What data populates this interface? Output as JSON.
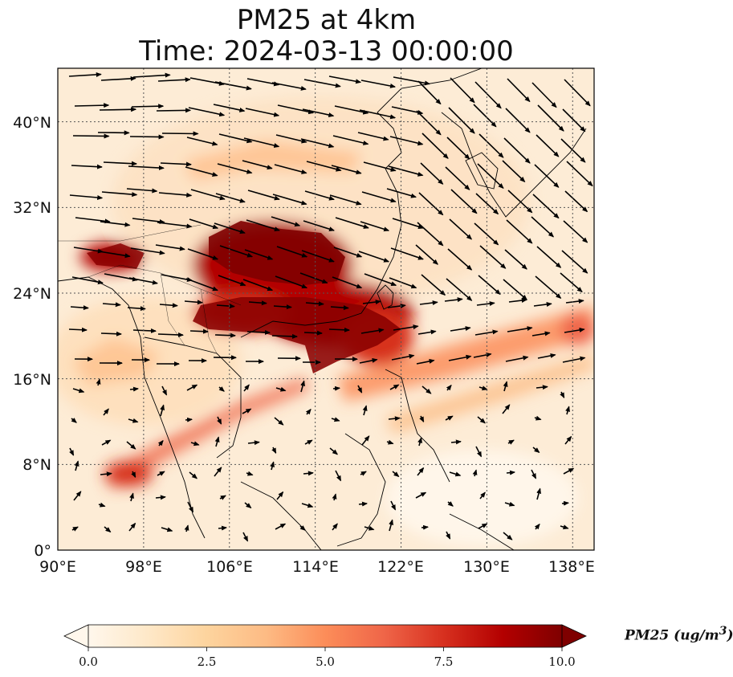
{
  "figure": {
    "title_line1": "PM25 at 4km",
    "title_line2": "Time: 2024-03-13 00:00:00"
  },
  "map": {
    "variable": "PM25",
    "level": "4km",
    "time": "2024-03-13 00:00:00",
    "extent": {
      "lon": [
        90,
        140
      ],
      "lat": [
        0,
        45
      ]
    },
    "lon_ticks": [
      "90°E",
      "98°E",
      "106°E",
      "114°E",
      "122°E",
      "130°E",
      "138°E"
    ],
    "lat_ticks": [
      "0°",
      "8°N",
      "16°N",
      "24°N",
      "32°N",
      "40°N"
    ],
    "gridlines": true,
    "coastlines": true,
    "wind_vectors": true
  },
  "colorbar": {
    "label_text": "PM25 (ug/m",
    "label_sup": "3",
    "label_close": ")",
    "ticks": [
      "0.0",
      "2.5",
      "5.0",
      "7.5",
      "10.0"
    ],
    "range": [
      0,
      10
    ],
    "colormap": "OrRd",
    "extend": "both",
    "colors": [
      "#fff7ec",
      "#fee8c8",
      "#fdd49e",
      "#fdbb84",
      "#fc8d59",
      "#ef6548",
      "#d7301f",
      "#b30000",
      "#7f0000"
    ]
  }
}
